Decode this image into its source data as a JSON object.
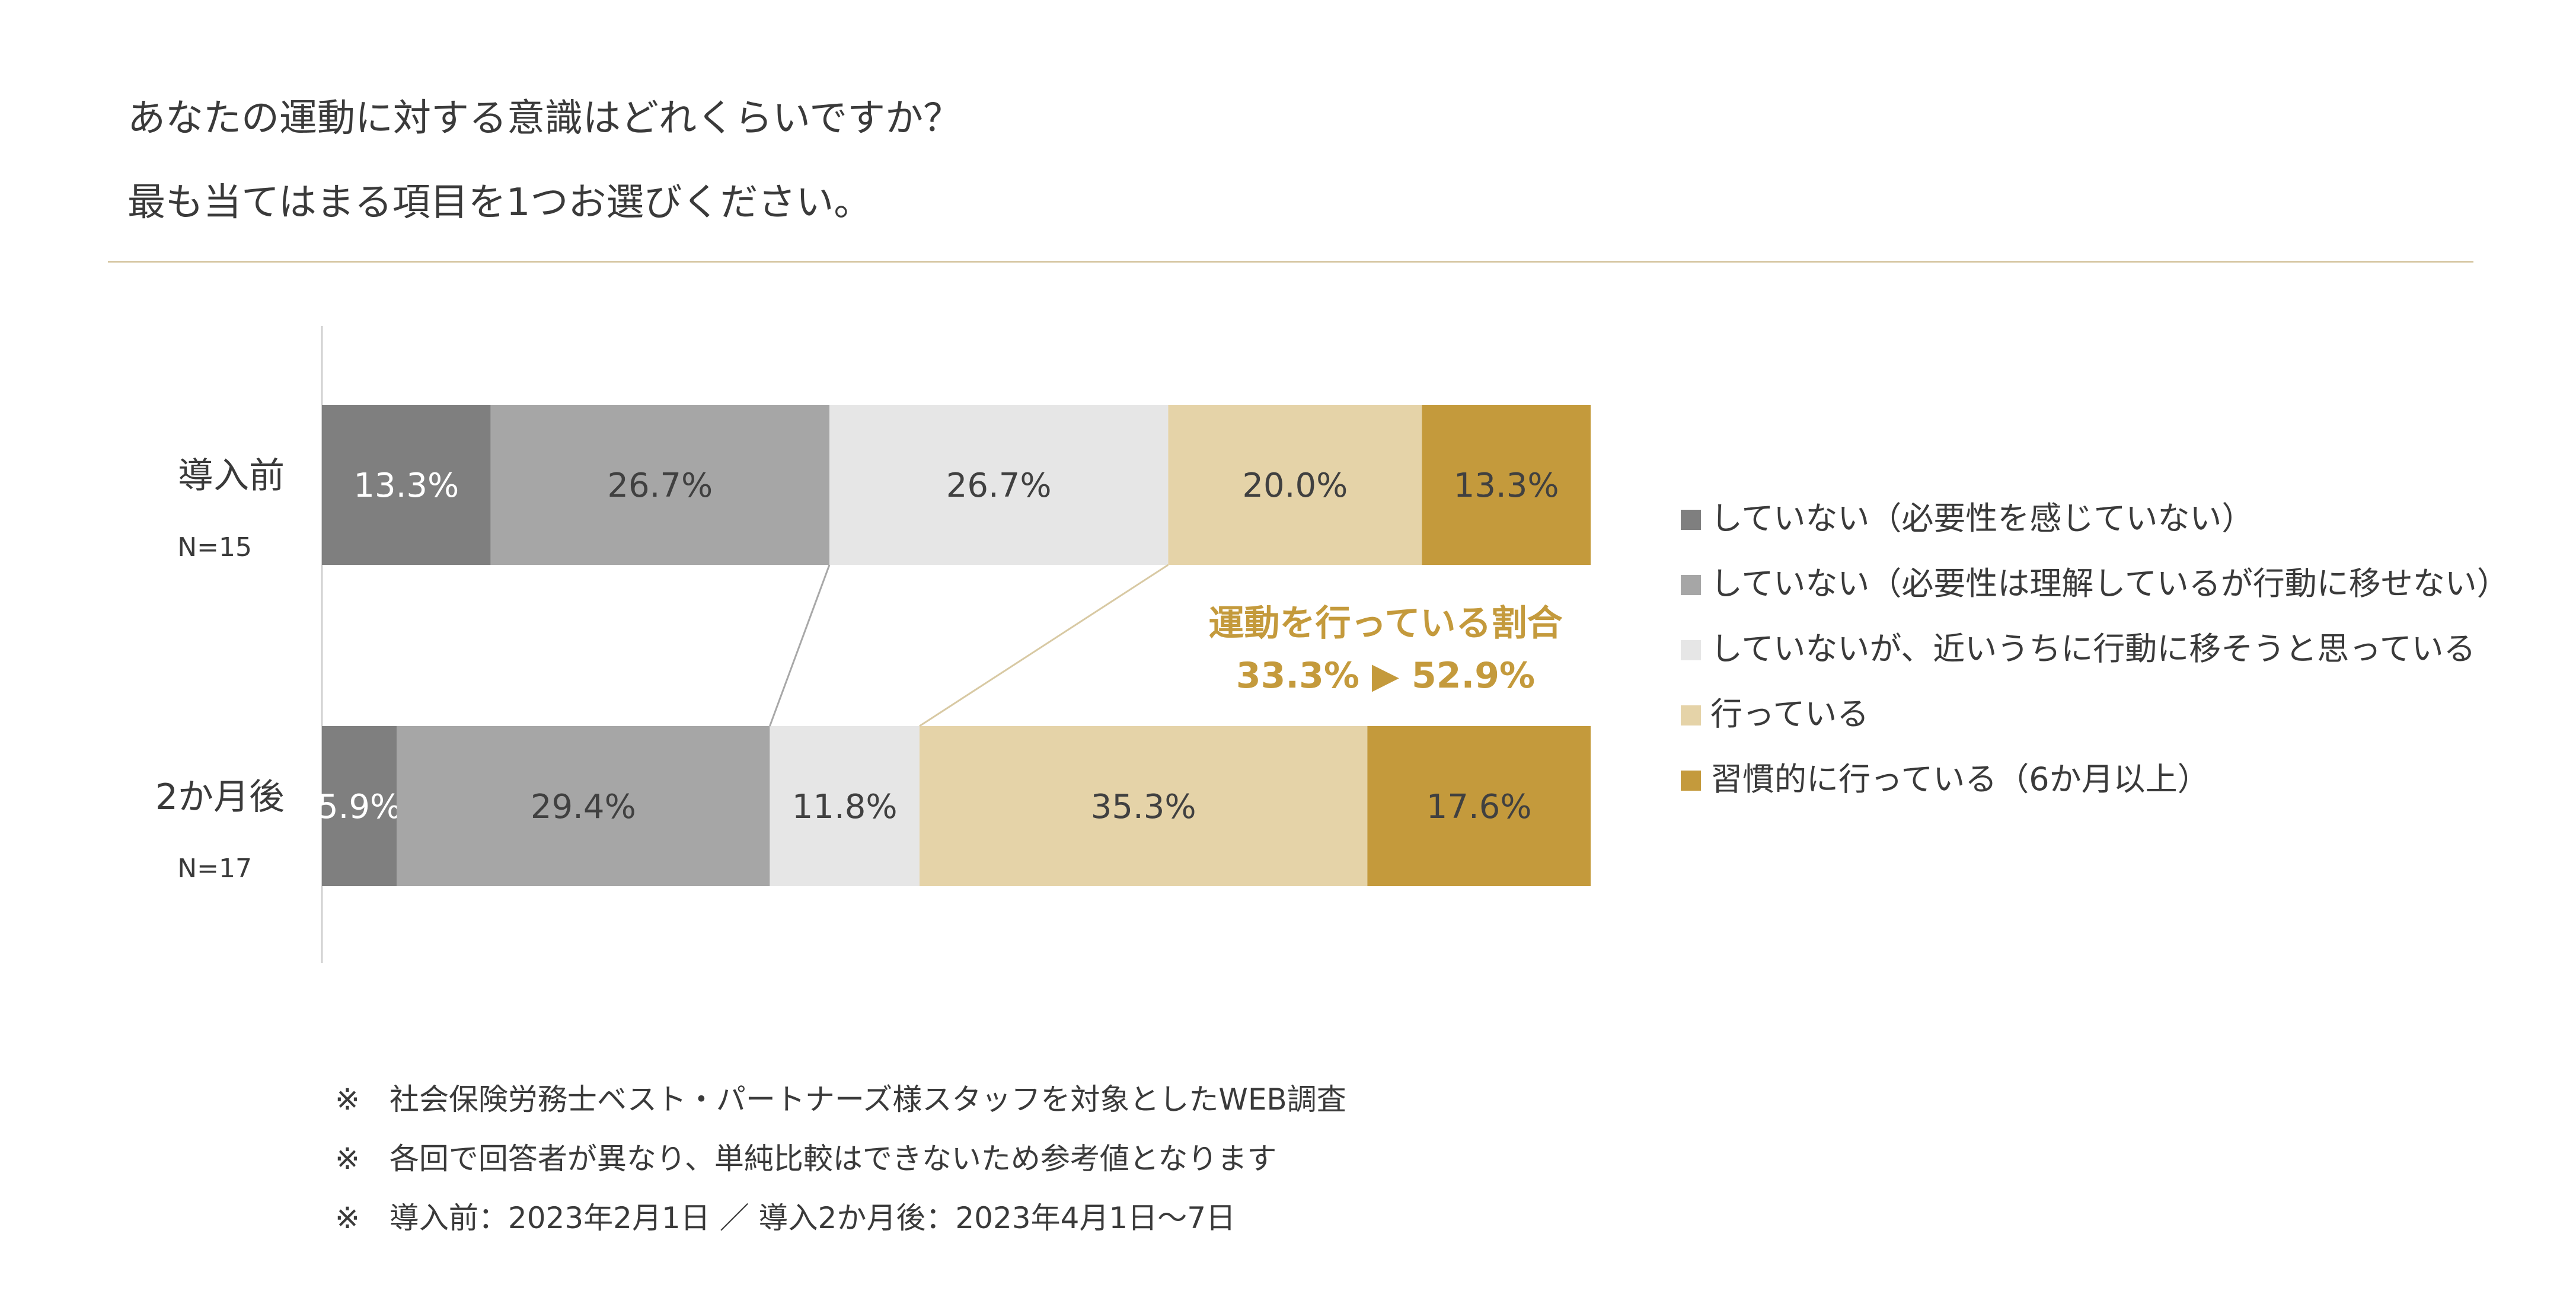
{
  "question": {
    "line1": "あなたの運動に対する意識はどれくらいですか？",
    "line2": "最も当てはまる項目を1つお選びください。"
  },
  "chart_data": {
    "type": "stacked-bar-horizontal-100",
    "unit": "%",
    "rows": [
      {
        "label": "導入前",
        "n": "N=15",
        "values": [
          13.3,
          26.7,
          26.7,
          20.0,
          13.3
        ],
        "labels": [
          "13.3%",
          "26.7%",
          "26.7%",
          "20.0%",
          "13.3%"
        ]
      },
      {
        "label": "2か月後",
        "n": "N=17",
        "values": [
          5.9,
          29.4,
          11.8,
          35.3,
          17.6
        ],
        "labels": [
          "5.9%",
          "29.4%",
          "11.8%",
          "35.3%",
          "17.6%"
        ]
      }
    ],
    "series": [
      {
        "name": "していない（必要性を感じていない）",
        "color": "#7f7f7f"
      },
      {
        "name": "していない（必要性は理解しているが行動に移せない）",
        "color": "#a6a6a6"
      },
      {
        "name": "していないが、近いうちに行動に移そうと思っている",
        "color": "#e6e6e6"
      },
      {
        "name": "行っている",
        "color": "#e5d3a8"
      },
      {
        "name": "習慣的に行っている（6か月以上）",
        "color": "#c49a3c"
      }
    ],
    "annotation": {
      "line1": "運動を行っている割合",
      "line2": "33.3% ▶ 52.9%",
      "color": "#c49a3c"
    },
    "legend_position": "right"
  },
  "notes": [
    "※　社会保険労務士ベスト・パートナーズ様スタッフを対象としたWEB調査",
    "※　各回で回答者が異なり、単純比較はできないため参考値となります",
    "※　導入前：2023年2月1日 ／ 導入2か月後：2023年4月1日～7日"
  ]
}
